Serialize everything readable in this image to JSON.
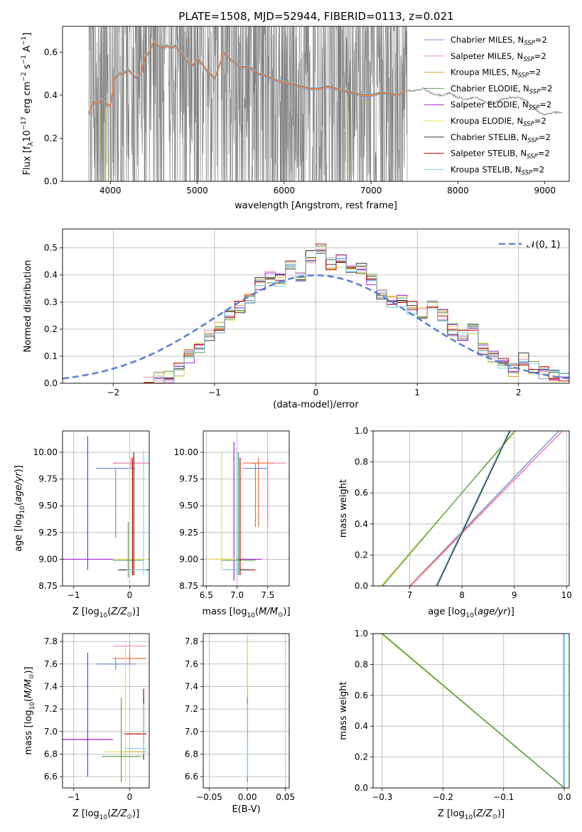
{
  "figure": {
    "title": "PLATE=1508, MJD=52944, FIBERID=0113, z=0.021"
  },
  "colors": {
    "Chabrier MILES": "#6f8fd8",
    "Salpeter MILES": "#ee8ab6",
    "Kroupa MILES": "#d9a030",
    "Chabrier ELODIE": "#58a058",
    "Salpeter ELODIE": "#a020d8",
    "Kroupa ELODIE": "#e8e050",
    "Chabrier STELIB": "#333333",
    "Salpeter STELIB": "#c80000",
    "Kroupa STELIB": "#80d8e8",
    "data": "#808080",
    "orange": "#e8763c",
    "normal": "#5b83d4"
  },
  "chart_data": [
    {
      "id": "spectrum",
      "type": "line",
      "title": "PLATE=1508, MJD=52944, FIBERID=0113, z=0.021",
      "xlabel": "wavelength [Angstrom, rest frame]",
      "ylabel": "Flux [f_λ 10^-17 erg cm^-2 s^-1 A^-1]",
      "xlim": [
        3450,
        9280
      ],
      "ylim": [
        0,
        0.72
      ],
      "xticks": [
        4000,
        5000,
        6000,
        7000,
        8000,
        9000
      ],
      "yticks": [
        0.0,
        0.2,
        0.4,
        0.6
      ],
      "grid": false,
      "legend_placement": "upper right",
      "legend": [
        "Chabrier MILES, N_SSP=2",
        "Salpeter MILES, N_SSP=2",
        "Kroupa MILES, N_SSP=2",
        "Chabrier ELODIE, N_SSP=2",
        "Salpeter ELODIE, N_SSP=2",
        "Kroupa ELODIE, N_SSP=2",
        "Chabrier STELIB, N_SSP=2",
        "Salpeter STELIB, N_SSP=2",
        "Kroupa STELIB, N_SSP=2"
      ],
      "model_curve": {
        "x": [
          3750,
          3800,
          3850,
          3900,
          3950,
          4000,
          4050,
          4100,
          4150,
          4200,
          4250,
          4300,
          4350,
          4400,
          4450,
          4500,
          4550,
          4600,
          4650,
          4700,
          4750,
          4800,
          4850,
          4900,
          4950,
          5000,
          5050,
          5100,
          5150,
          5200,
          5250,
          5300,
          5350,
          5400,
          5450,
          5500,
          5600,
          5700,
          5800,
          5900,
          6000,
          6100,
          6200,
          6300,
          6400,
          6500,
          6600,
          6700,
          6800,
          6900,
          7000,
          7100,
          7200,
          7300,
          7400,
          7500,
          7600,
          7700,
          7800,
          7900,
          8000,
          8100,
          8200,
          8300,
          8400,
          8500,
          8600,
          8700,
          8800,
          8900,
          9000,
          9100,
          9200
        ],
        "y": [
          0.31,
          0.37,
          0.36,
          0.38,
          0.36,
          0.35,
          0.48,
          0.5,
          0.5,
          0.52,
          0.5,
          0.48,
          0.5,
          0.58,
          0.6,
          0.65,
          0.63,
          0.62,
          0.63,
          0.62,
          0.63,
          0.6,
          0.58,
          0.55,
          0.54,
          0.57,
          0.55,
          0.52,
          0.5,
          0.48,
          0.53,
          0.6,
          0.58,
          0.56,
          0.55,
          0.53,
          0.53,
          0.5,
          0.49,
          0.47,
          0.46,
          0.45,
          0.44,
          0.43,
          0.43,
          0.44,
          0.43,
          0.42,
          0.41,
          0.4,
          0.4,
          0.41,
          0.41,
          0.4,
          0.42,
          0.42,
          0.43,
          0.41,
          0.4,
          0.41,
          0.39,
          0.38,
          0.39,
          0.37,
          0.36,
          0.38,
          0.39,
          0.39,
          0.37,
          0.33,
          0.31,
          0.32,
          0.32
        ]
      }
    },
    {
      "id": "residuals",
      "type": "line",
      "xlabel": "(data-model)/error",
      "ylabel": "Normed distribution",
      "xlim": [
        -2.5,
        2.5
      ],
      "ylim": [
        0,
        0.57
      ],
      "xticks": [
        -2,
        -1,
        0,
        1,
        2
      ],
      "yticks": [
        0.0,
        0.1,
        0.2,
        0.3,
        0.4,
        0.5
      ],
      "grid": true,
      "legend_placement": "upper right",
      "legend": [
        "N(0,1)"
      ],
      "hist_bins_left": [
        -1.7,
        -1.6,
        -1.5,
        -1.4,
        -1.3,
        -1.2,
        -1.1,
        -1.0,
        -0.9,
        -0.8,
        -0.7,
        -0.6,
        -0.5,
        -0.4,
        -0.3,
        -0.2,
        -0.1,
        0.0,
        0.1,
        0.2,
        0.3,
        0.4,
        0.5,
        0.6,
        0.7,
        0.8,
        0.9,
        1.0,
        1.1,
        1.2,
        1.3,
        1.4,
        1.5,
        1.6,
        1.7,
        1.8,
        1.9,
        2.0,
        2.1,
        2.2,
        2.3,
        2.4
      ],
      "hist_values": [
        0.0,
        0.02,
        0.02,
        0.05,
        0.1,
        0.13,
        0.17,
        0.21,
        0.25,
        0.28,
        0.32,
        0.37,
        0.39,
        0.38,
        0.43,
        0.39,
        0.47,
        0.5,
        0.44,
        0.45,
        0.42,
        0.42,
        0.38,
        0.33,
        0.3,
        0.3,
        0.28,
        0.26,
        0.3,
        0.25,
        0.2,
        0.18,
        0.2,
        0.13,
        0.1,
        0.08,
        0.05,
        0.09,
        0.06,
        0.04,
        0.03,
        0.02
      ]
    },
    {
      "id": "age-vs-Z",
      "type": "scatter",
      "xlabel": "Z [log10(Z/Z⊙)]",
      "ylabel": "age [log10(age/yr)]",
      "xlim": [
        -1.2,
        0.35
      ],
      "ylim": [
        8.75,
        10.2
      ],
      "xticks": [
        -1,
        0
      ],
      "yticks": [
        8.75,
        9.0,
        9.25,
        9.5,
        9.75,
        10.0
      ],
      "grid": true,
      "errorbars": [
        {
          "color": "#6f8fd8",
          "x": [
            -0.6,
            0.1
          ],
          "y": 9.85,
          "dy": [
            9.2,
            9.85
          ]
        },
        {
          "color": "#e8763c",
          "x": [
            -0.3,
            0.35
          ],
          "y": 9.9,
          "dy": [
            9.85,
            9.95
          ]
        },
        {
          "color": "#ee8ab6",
          "x": [
            -0.3,
            0.35
          ],
          "y": 9.9,
          "dy": [
            9.85,
            9.95
          ]
        },
        {
          "color": "#a020d8",
          "x": [
            -1.2,
            -0.3
          ],
          "y": 9.0,
          "dy": [
            8.9,
            10.15
          ]
        },
        {
          "color": "#e8e050",
          "x": [
            -0.3,
            0.3
          ],
          "y": 9.0,
          "dy": [
            8.85,
            10.0
          ]
        },
        {
          "color": "#58a058",
          "x": [
            -0.3,
            0.25
          ],
          "y": 8.99,
          "dy": [
            8.83,
            9.35
          ]
        },
        {
          "color": "#c80000",
          "x": [
            -0.2,
            0.3
          ],
          "y": 8.9,
          "dy": [
            8.85,
            9.95
          ]
        },
        {
          "color": "#333333",
          "x": [
            -0.2,
            0.35
          ],
          "y": 8.9,
          "dy": [
            8.85,
            10.0
          ]
        },
        {
          "color": "#80d8e8",
          "x": [
            -0.05,
            0.3
          ],
          "y": 8.9,
          "dy": [
            8.85,
            10.02
          ]
        }
      ]
    },
    {
      "id": "age-vs-mass",
      "type": "scatter",
      "xlabel": "mass [log10(M/M⊙)]",
      "ylabel": "",
      "xlim": [
        6.45,
        7.85
      ],
      "ylim": [
        8.75,
        10.2
      ],
      "xticks": [
        6.5,
        7.0,
        7.5
      ],
      "yticks": [
        8.75,
        9.0,
        9.25,
        9.5,
        9.75,
        10.0
      ],
      "grid": true,
      "errorbars": [
        {
          "color": "#ee8ab6",
          "x": [
            7.2,
            7.8
          ],
          "y": 9.9,
          "dy": [
            9.3,
            9.95
          ]
        },
        {
          "color": "#e8763c",
          "x": [
            7.1,
            7.6
          ],
          "y": 9.9,
          "dy": [
            9.3,
            9.95
          ]
        },
        {
          "color": "#6f8fd8",
          "x": [
            7.1,
            7.5
          ],
          "y": 9.85,
          "dy": [
            9.3,
            9.9
          ]
        },
        {
          "color": "#a020d8",
          "x": [
            6.5,
            7.4
          ],
          "y": 9.0,
          "dy": [
            8.8,
            10.1
          ]
        },
        {
          "color": "#e8e050",
          "x": [
            6.5,
            7.0
          ],
          "y": 9.0,
          "dy": [
            8.9,
            10.0
          ]
        },
        {
          "color": "#58a058",
          "x": [
            6.75,
            7.3
          ],
          "y": 8.99,
          "dy": [
            8.85,
            10.0
          ]
        },
        {
          "color": "#c80000",
          "x": [
            6.8,
            7.3
          ],
          "y": 8.9,
          "dy": [
            8.85,
            9.95
          ]
        },
        {
          "color": "#333333",
          "x": [
            6.8,
            7.2
          ],
          "y": 8.9,
          "dy": [
            8.85,
            10.0
          ]
        },
        {
          "color": "#80d8e8",
          "x": [
            6.75,
            7.05
          ],
          "y": 8.9,
          "dy": [
            8.85,
            10.0
          ]
        }
      ]
    },
    {
      "id": "mass-weight-vs-age",
      "type": "line",
      "xlabel": "age [log10(age/yr)]",
      "ylabel": "mass weight",
      "xlim": [
        6.3,
        10.05
      ],
      "ylim": [
        0,
        1
      ],
      "xticks": [
        7,
        8,
        9,
        10
      ],
      "yticks": [
        0.0,
        0.2,
        0.4,
        0.6,
        0.8,
        1.0
      ],
      "grid": true,
      "series": [
        {
          "color": "#6f8fd8",
          "x": [
            7.0,
            9.85
          ],
          "y": [
            0,
            1
          ]
        },
        {
          "color": "#e8763c",
          "x": [
            7.0,
            9.92
          ],
          "y": [
            0,
            1
          ]
        },
        {
          "color": "#ee8ab6",
          "x": [
            7.02,
            9.92
          ],
          "y": [
            0,
            1
          ]
        },
        {
          "color": "#e8e050",
          "x": [
            6.45,
            9.03
          ],
          "y": [
            0,
            1
          ]
        },
        {
          "color": "#58a058",
          "x": [
            6.48,
            9.01
          ],
          "y": [
            0,
            1
          ]
        },
        {
          "color": "#80d8e8",
          "x": [
            7.5,
            8.9
          ],
          "y": [
            0,
            1
          ]
        },
        {
          "color": "#333333",
          "x": [
            7.52,
            8.92
          ],
          "y": [
            0,
            1
          ]
        }
      ]
    },
    {
      "id": "mass-vs-Z",
      "type": "scatter",
      "xlabel": "Z [log10(Z/Z⊙)]",
      "ylabel": "mass [log10(M/M⊙)]",
      "xlim": [
        -1.2,
        0.35
      ],
      "ylim": [
        6.5,
        7.87
      ],
      "xticks": [
        -1,
        0
      ],
      "yticks": [
        6.6,
        6.8,
        7.0,
        7.2,
        7.4,
        7.6,
        7.8
      ],
      "grid": true,
      "errorbars": [
        {
          "color": "#ee8ab6",
          "x": [
            -0.3,
            0.3
          ],
          "y": 7.76,
          "dy": [
            7.6,
            7.8
          ]
        },
        {
          "color": "#e8763c",
          "x": [
            -0.3,
            0.3
          ],
          "y": 7.65,
          "dy": [
            7.6,
            7.7
          ]
        },
        {
          "color": "#6f8fd8",
          "x": [
            -0.6,
            0.1
          ],
          "y": 7.6,
          "dy": [
            7.55,
            7.65
          ]
        },
        {
          "color": "#c80000",
          "x": [
            -0.1,
            0.3
          ],
          "y": 6.98,
          "dy": [
            6.9,
            7.38
          ]
        },
        {
          "color": "#a020d8",
          "x": [
            -1.2,
            -0.3
          ],
          "y": 6.93,
          "dy": [
            6.6,
            7.7
          ]
        },
        {
          "color": "#333333",
          "x": [
            -0.1,
            0.3
          ],
          "y": 6.82,
          "dy": [
            6.75,
            7.3
          ]
        },
        {
          "color": "#e8e050",
          "x": [
            -0.45,
            0.3
          ],
          "y": 6.82,
          "dy": [
            6.55,
            7.8
          ]
        },
        {
          "color": "#58a058",
          "x": [
            -0.5,
            0.2
          ],
          "y": 6.78,
          "dy": [
            6.55,
            7.3
          ]
        },
        {
          "color": "#80d8e8",
          "x": [
            -0.1,
            0.3
          ],
          "y": 6.85,
          "dy": [
            6.8,
            7.25
          ]
        }
      ]
    },
    {
      "id": "mass-vs-EBV",
      "type": "scatter",
      "xlabel": "E(B-V)",
      "ylabel": "",
      "xlim": [
        -0.058,
        0.055
      ],
      "ylim": [
        6.5,
        7.87
      ],
      "xticks": [
        -0.05,
        0.0,
        0.05
      ],
      "yticks": [
        6.6,
        6.8,
        7.0,
        7.2,
        7.4,
        7.6,
        7.8
      ],
      "grid": true,
      "errorbars": [
        {
          "color": "#ee8ab6",
          "x": [
            0,
            0
          ],
          "y": 7.76,
          "dy": [
            7.6,
            7.82
          ]
        },
        {
          "color": "#a020d8",
          "x": [
            0,
            0
          ],
          "y": 6.93,
          "dy": [
            6.6,
            7.7
          ]
        },
        {
          "color": "#c80000",
          "x": [
            0,
            0
          ],
          "y": 6.98,
          "dy": [
            6.9,
            7.38
          ]
        },
        {
          "color": "#e8e050",
          "x": [
            0,
            0
          ],
          "y": 6.82,
          "dy": [
            6.55,
            7.8
          ]
        },
        {
          "color": "#58a058",
          "x": [
            0,
            0
          ],
          "y": 6.78,
          "dy": [
            6.55,
            7.3
          ]
        },
        {
          "color": "#80d8e8",
          "x": [
            0,
            0
          ],
          "y": 6.85,
          "dy": [
            6.6,
            7.25
          ]
        }
      ]
    },
    {
      "id": "mass-weight-vs-Z",
      "type": "line",
      "xlabel": "Z [log10(Z/Z⊙)]",
      "ylabel": "mass weight",
      "xlim": [
        -0.315,
        0.008
      ],
      "ylim": [
        0,
        1
      ],
      "xticks": [
        -0.3,
        -0.2,
        -0.1,
        0.0
      ],
      "yticks": [
        0.0,
        0.2,
        0.4,
        0.6,
        0.8,
        1.0
      ],
      "grid": true,
      "series": [
        {
          "color": "#e8e050",
          "x": [
            -0.302,
            0.0
          ],
          "y": [
            1.0,
            0.0
          ]
        },
        {
          "color": "#58a058",
          "x": [
            -0.3,
            0.0
          ],
          "y": [
            1.0,
            0.0
          ]
        },
        {
          "color": "#6f8fd8",
          "x": [
            -0.001,
            -0.001
          ],
          "y": [
            0,
            1
          ]
        },
        {
          "color": "#e8763c",
          "x": [
            0.0,
            0.0
          ],
          "y": [
            0,
            1
          ]
        },
        {
          "color": "#80d8e8",
          "x": [
            0.0,
            0.0
          ],
          "y": [
            0,
            1
          ]
        }
      ]
    }
  ]
}
